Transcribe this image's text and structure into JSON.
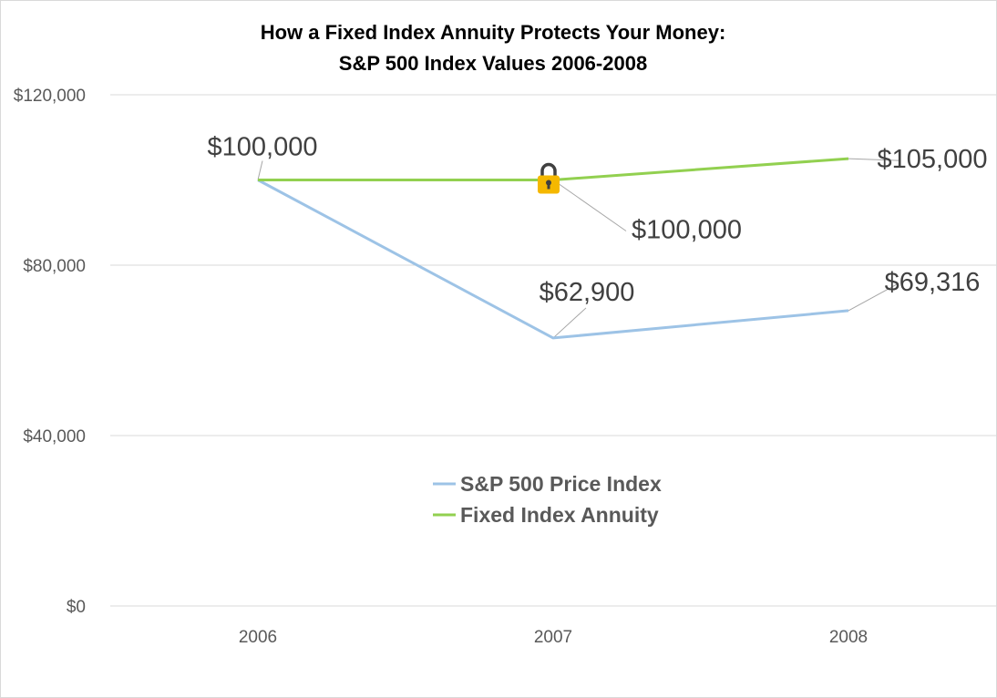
{
  "chart_data": {
    "type": "line",
    "title_line1": "How a Fixed Index Annuity Protects Your Money:",
    "title_line2": "S&P 500 Index Values 2006-2008",
    "categories": [
      "2006",
      "2007",
      "2008"
    ],
    "y_ticks": [
      {
        "value": 0,
        "label": "$0"
      },
      {
        "value": 40000,
        "label": "$40,000"
      },
      {
        "value": 80000,
        "label": "$80,000"
      },
      {
        "value": 120000,
        "label": "$120,000"
      }
    ],
    "ylim": [
      0,
      120000
    ],
    "grid": true,
    "legend_position": "center",
    "series": [
      {
        "name": "S&P 500 Price Index",
        "values": [
          100000,
          62900,
          69316
        ],
        "color": "#9dc3e6",
        "data_labels": [
          "$100,000",
          "$62,900",
          "$69,316"
        ]
      },
      {
        "name": "Fixed Index Annuity",
        "values": [
          100000,
          100000,
          105000
        ],
        "color": "#92d050",
        "data_labels": [
          "",
          "$100,000",
          "$105,000"
        ]
      }
    ],
    "annotations": [
      {
        "icon": "lock-icon",
        "category": "2007",
        "value": 100000,
        "color": "#f5b800"
      }
    ]
  }
}
